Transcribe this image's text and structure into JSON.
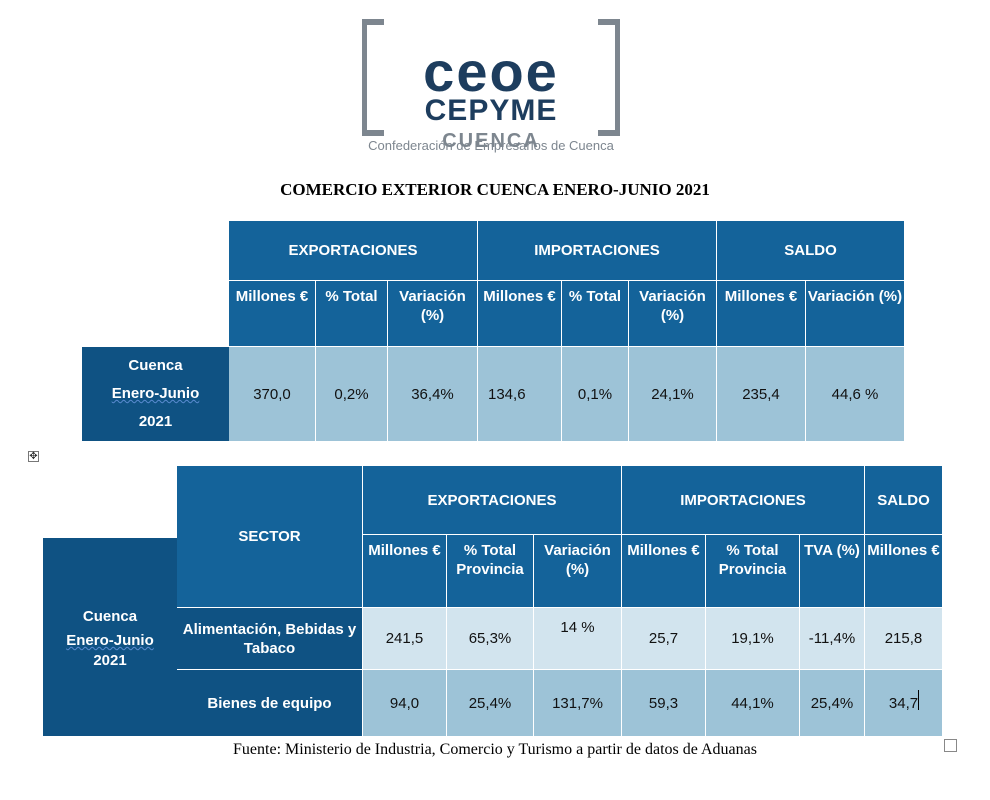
{
  "logo": {
    "line1": "ceoe",
    "line2": "CEPYME",
    "line3": "CUENCA",
    "subtitle": "Confederación de Empresarios de Cuenca"
  },
  "doc": {
    "title": "COMERCIO EXTERIOR CUENCA ENERO-JUNIO 2021",
    "source": "Fuente: Ministerio de Industria, Comercio y Turismo a partir de datos de Aduanas"
  },
  "colors": {
    "header_blue": "#14639a",
    "dark_blue": "#0f5283",
    "light_blue": "#9dc3d7",
    "pale_blue": "#d2e4ee",
    "logo_navy": "#1d3d5e"
  },
  "table1": {
    "groups": {
      "exports": "EXPORTACIONES",
      "imports": "IMPORTACIONES",
      "balance": "SALDO"
    },
    "cols": {
      "exp_millones": "Millones €",
      "exp_total": "% Total",
      "exp_var": "Variación (%)",
      "imp_millones": "Millones €",
      "imp_total": "% Total",
      "imp_var": "Variación (%)",
      "sal_millones": "Millones €",
      "sal_var": "Variación (%)"
    },
    "row": {
      "label_1": "Cuenca",
      "label_2": "Enero-Junio",
      "label_3": "2021",
      "exp_millones": "370,0",
      "exp_total": "0,2%",
      "exp_var": "36,4%",
      "imp_millones": "134,6",
      "imp_total": "0,1%",
      "imp_var": "24,1%",
      "sal_millones": "235,4",
      "sal_var": "44,6 %"
    }
  },
  "table2": {
    "sector_header": "SECTOR",
    "groups": {
      "exports": "EXPORTACIONES",
      "imports": "IMPORTACIONES",
      "balance": "SALDO"
    },
    "cols": {
      "exp_millones": "Millones €",
      "exp_total": "% Total Provincia",
      "exp_var": "Variación (%)",
      "imp_millones": "Millones €",
      "imp_total": "% Total Provincia",
      "imp_tva": "TVA (%)",
      "sal_millones": "Millones €"
    },
    "row_label": {
      "l1": "Cuenca",
      "l2": "Enero-Junio",
      "l3": "2021"
    },
    "rows": [
      {
        "sector": "Alimentación, Bebidas y Tabaco",
        "exp_millones": "241,5",
        "exp_total": "65,3%",
        "exp_var": "14 %",
        "imp_millones": "25,7",
        "imp_total": "19,1%",
        "imp_tva": "-11,4%",
        "sal_millones": "215,8"
      },
      {
        "sector": "Bienes de equipo",
        "exp_millones": "94,0",
        "exp_total": "25,4%",
        "exp_var": "131,7%",
        "imp_millones": "59,3",
        "imp_total": "44,1%",
        "imp_tva": "25,4%",
        "sal_millones": "34,7"
      }
    ]
  },
  "icons": {
    "move_handle": "move-icon",
    "resize_handle": "resize-icon"
  }
}
